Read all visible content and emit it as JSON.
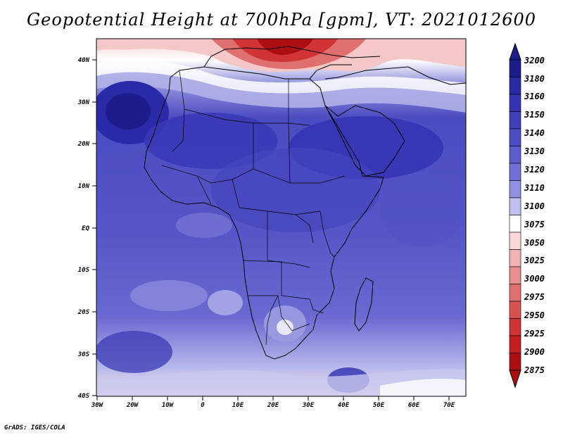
{
  "title": "Geopotential Height at 700hPa [gpm], VT: 2021012600",
  "credit": "GrADS: IGES/COLA",
  "axes": {
    "lat_labels": [
      "40N",
      "30N",
      "20N",
      "10N",
      "EQ",
      "10S",
      "20S",
      "30S",
      "40S"
    ],
    "lon_labels": [
      "30W",
      "20W",
      "10W",
      "0",
      "10E",
      "20E",
      "30E",
      "40E",
      "50E",
      "60E",
      "70E"
    ]
  },
  "colorbar": {
    "levels": [
      "3200",
      "3180",
      "3160",
      "3150",
      "3140",
      "3130",
      "3120",
      "3110",
      "3100",
      "3075",
      "3050",
      "3025",
      "3000",
      "2975",
      "2950",
      "2925",
      "2900",
      "2875"
    ],
    "colors": [
      "#1c1c8c",
      "#2a2aa8",
      "#3434b4",
      "#4040bc",
      "#4c4cc4",
      "#5c5ccc",
      "#7070d4",
      "#9090e0",
      "#c0c0ee",
      "#ffffff",
      "#f8d8d8",
      "#f0b4b4",
      "#e89090",
      "#e07070",
      "#d85050",
      "#d03434",
      "#c42020",
      "#aa1010"
    ]
  }
}
